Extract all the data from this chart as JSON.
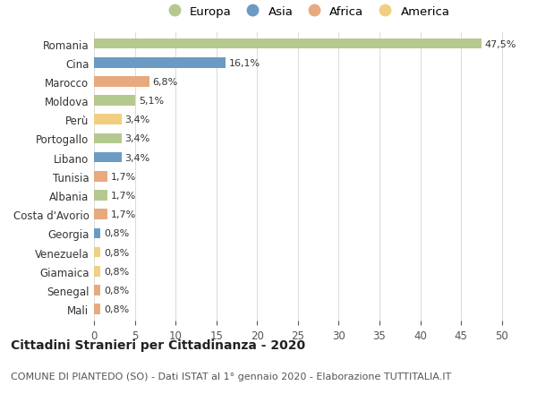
{
  "categories": [
    "Romania",
    "Cina",
    "Marocco",
    "Moldova",
    "Perù",
    "Portogallo",
    "Libano",
    "Tunisia",
    "Albania",
    "Costa d'Avorio",
    "Georgia",
    "Venezuela",
    "Giamaica",
    "Senegal",
    "Mali"
  ],
  "values": [
    47.5,
    16.1,
    6.8,
    5.1,
    3.4,
    3.4,
    3.4,
    1.7,
    1.7,
    1.7,
    0.8,
    0.8,
    0.8,
    0.8,
    0.8
  ],
  "labels": [
    "47,5%",
    "16,1%",
    "6,8%",
    "5,1%",
    "3,4%",
    "3,4%",
    "3,4%",
    "1,7%",
    "1,7%",
    "1,7%",
    "0,8%",
    "0,8%",
    "0,8%",
    "0,8%",
    "0,8%"
  ],
  "continents": [
    "Europa",
    "Asia",
    "Africa",
    "Europa",
    "America",
    "Europa",
    "Asia",
    "Africa",
    "Europa",
    "Africa",
    "Asia",
    "America",
    "America",
    "Africa",
    "Africa"
  ],
  "colors": {
    "Europa": "#b5c98e",
    "Asia": "#6b9bc3",
    "Africa": "#e8a97e",
    "America": "#f0d080"
  },
  "legend_order": [
    "Europa",
    "Asia",
    "Africa",
    "America"
  ],
  "title": "Cittadini Stranieri per Cittadinanza - 2020",
  "subtitle": "COMUNE DI PIANTEDO (SO) - Dati ISTAT al 1° gennaio 2020 - Elaborazione TUTTITALIA.IT",
  "xlim": [
    0,
    52
  ],
  "xticks": [
    0,
    5,
    10,
    15,
    20,
    25,
    30,
    35,
    40,
    45,
    50
  ],
  "background_color": "#ffffff",
  "grid_color": "#dddddd",
  "bar_height": 0.55,
  "title_fontsize": 10,
  "subtitle_fontsize": 8,
  "tick_fontsize": 8.5,
  "label_fontsize": 8,
  "legend_fontsize": 9.5
}
